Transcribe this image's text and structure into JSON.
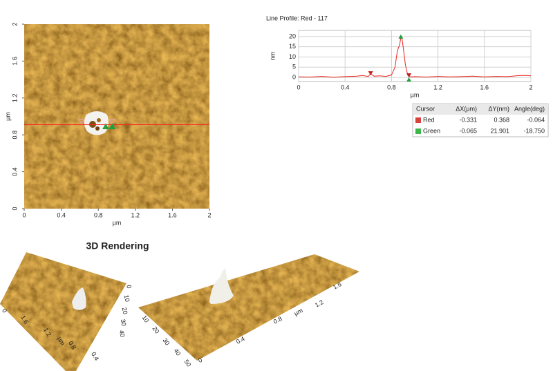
{
  "image": {
    "xlim": [
      0,
      2
    ],
    "ylim": [
      0,
      2
    ],
    "xticks": [
      0,
      0.4,
      0.8,
      1.2,
      1.6,
      2
    ],
    "yticks": [
      0,
      0.4,
      0.8,
      1.2,
      1.6,
      2
    ],
    "xlabel": "µm",
    "ylabel": "µm",
    "line_y": 0.91
  },
  "chart_data": {
    "type": "line",
    "title": "Line Profile: Red - 117",
    "xlabel": "µm",
    "ylabel": "nm",
    "x": [
      0,
      0.1,
      0.2,
      0.3,
      0.4,
      0.5,
      0.55,
      0.6,
      0.62,
      0.65,
      0.7,
      0.75,
      0.8,
      0.83,
      0.85,
      0.87,
      0.88,
      0.89,
      0.9,
      0.92,
      0.94,
      0.96,
      1.0,
      1.1,
      1.2,
      1.3,
      1.4,
      1.5,
      1.6,
      1.7,
      1.8,
      1.9,
      1.95,
      2
    ],
    "series": [
      {
        "color": "#e8231c",
        "values": [
          0.3,
          0.2,
          0.5,
          0.1,
          0.4,
          0.6,
          0.9,
          0.5,
          1.8,
          0.6,
          0.8,
          0.5,
          1.2,
          5,
          13,
          16,
          19.5,
          19,
          15,
          6,
          1,
          0.3,
          0.4,
          0.2,
          0.5,
          0.3,
          0.4,
          0.6,
          0.3,
          0.5,
          0.4,
          0.9,
          1,
          0.8
        ]
      }
    ],
    "markers": [
      {
        "color": "#c0201c",
        "x": [
          0.62,
          0.95
        ],
        "y": [
          2,
          1
        ]
      },
      {
        "color": "#1fa040",
        "x": [
          0.88,
          0.95
        ],
        "y": [
          20,
          -1
        ]
      }
    ],
    "xlim": [
      0,
      2
    ],
    "ylim": [
      -2,
      23
    ],
    "xticks": [
      0,
      0.4,
      0.8,
      1.2,
      1.6,
      2
    ],
    "yticks": [
      0,
      5,
      10,
      15,
      20
    ],
    "grid": true
  },
  "cursor_table": {
    "header": [
      "Cursor",
      "ΔX(µm)",
      "ΔY(nm)",
      "Angle(deg)"
    ],
    "rows": [
      {
        "color": "#d9413b",
        "cells": [
          "Red",
          "-0.331",
          "0.368",
          "-0.064"
        ]
      },
      {
        "color": "#3cb84a",
        "cells": [
          "Green",
          "-0.065",
          "21.901",
          "-18.750"
        ]
      }
    ]
  },
  "rendering": {
    "title": "3D Rendering",
    "left_labels": [
      "0",
      "1.6",
      "1.2",
      "µm",
      "0.8",
      "0.4"
    ],
    "left_z_labels": [
      "0",
      "10",
      "20",
      "30",
      "40"
    ],
    "right_labels": [
      "0",
      "0.4",
      "0.8",
      "µm",
      "1.2",
      "1.6"
    ],
    "right_z_labels": [
      "10",
      "20",
      "30",
      "40",
      "50"
    ]
  }
}
